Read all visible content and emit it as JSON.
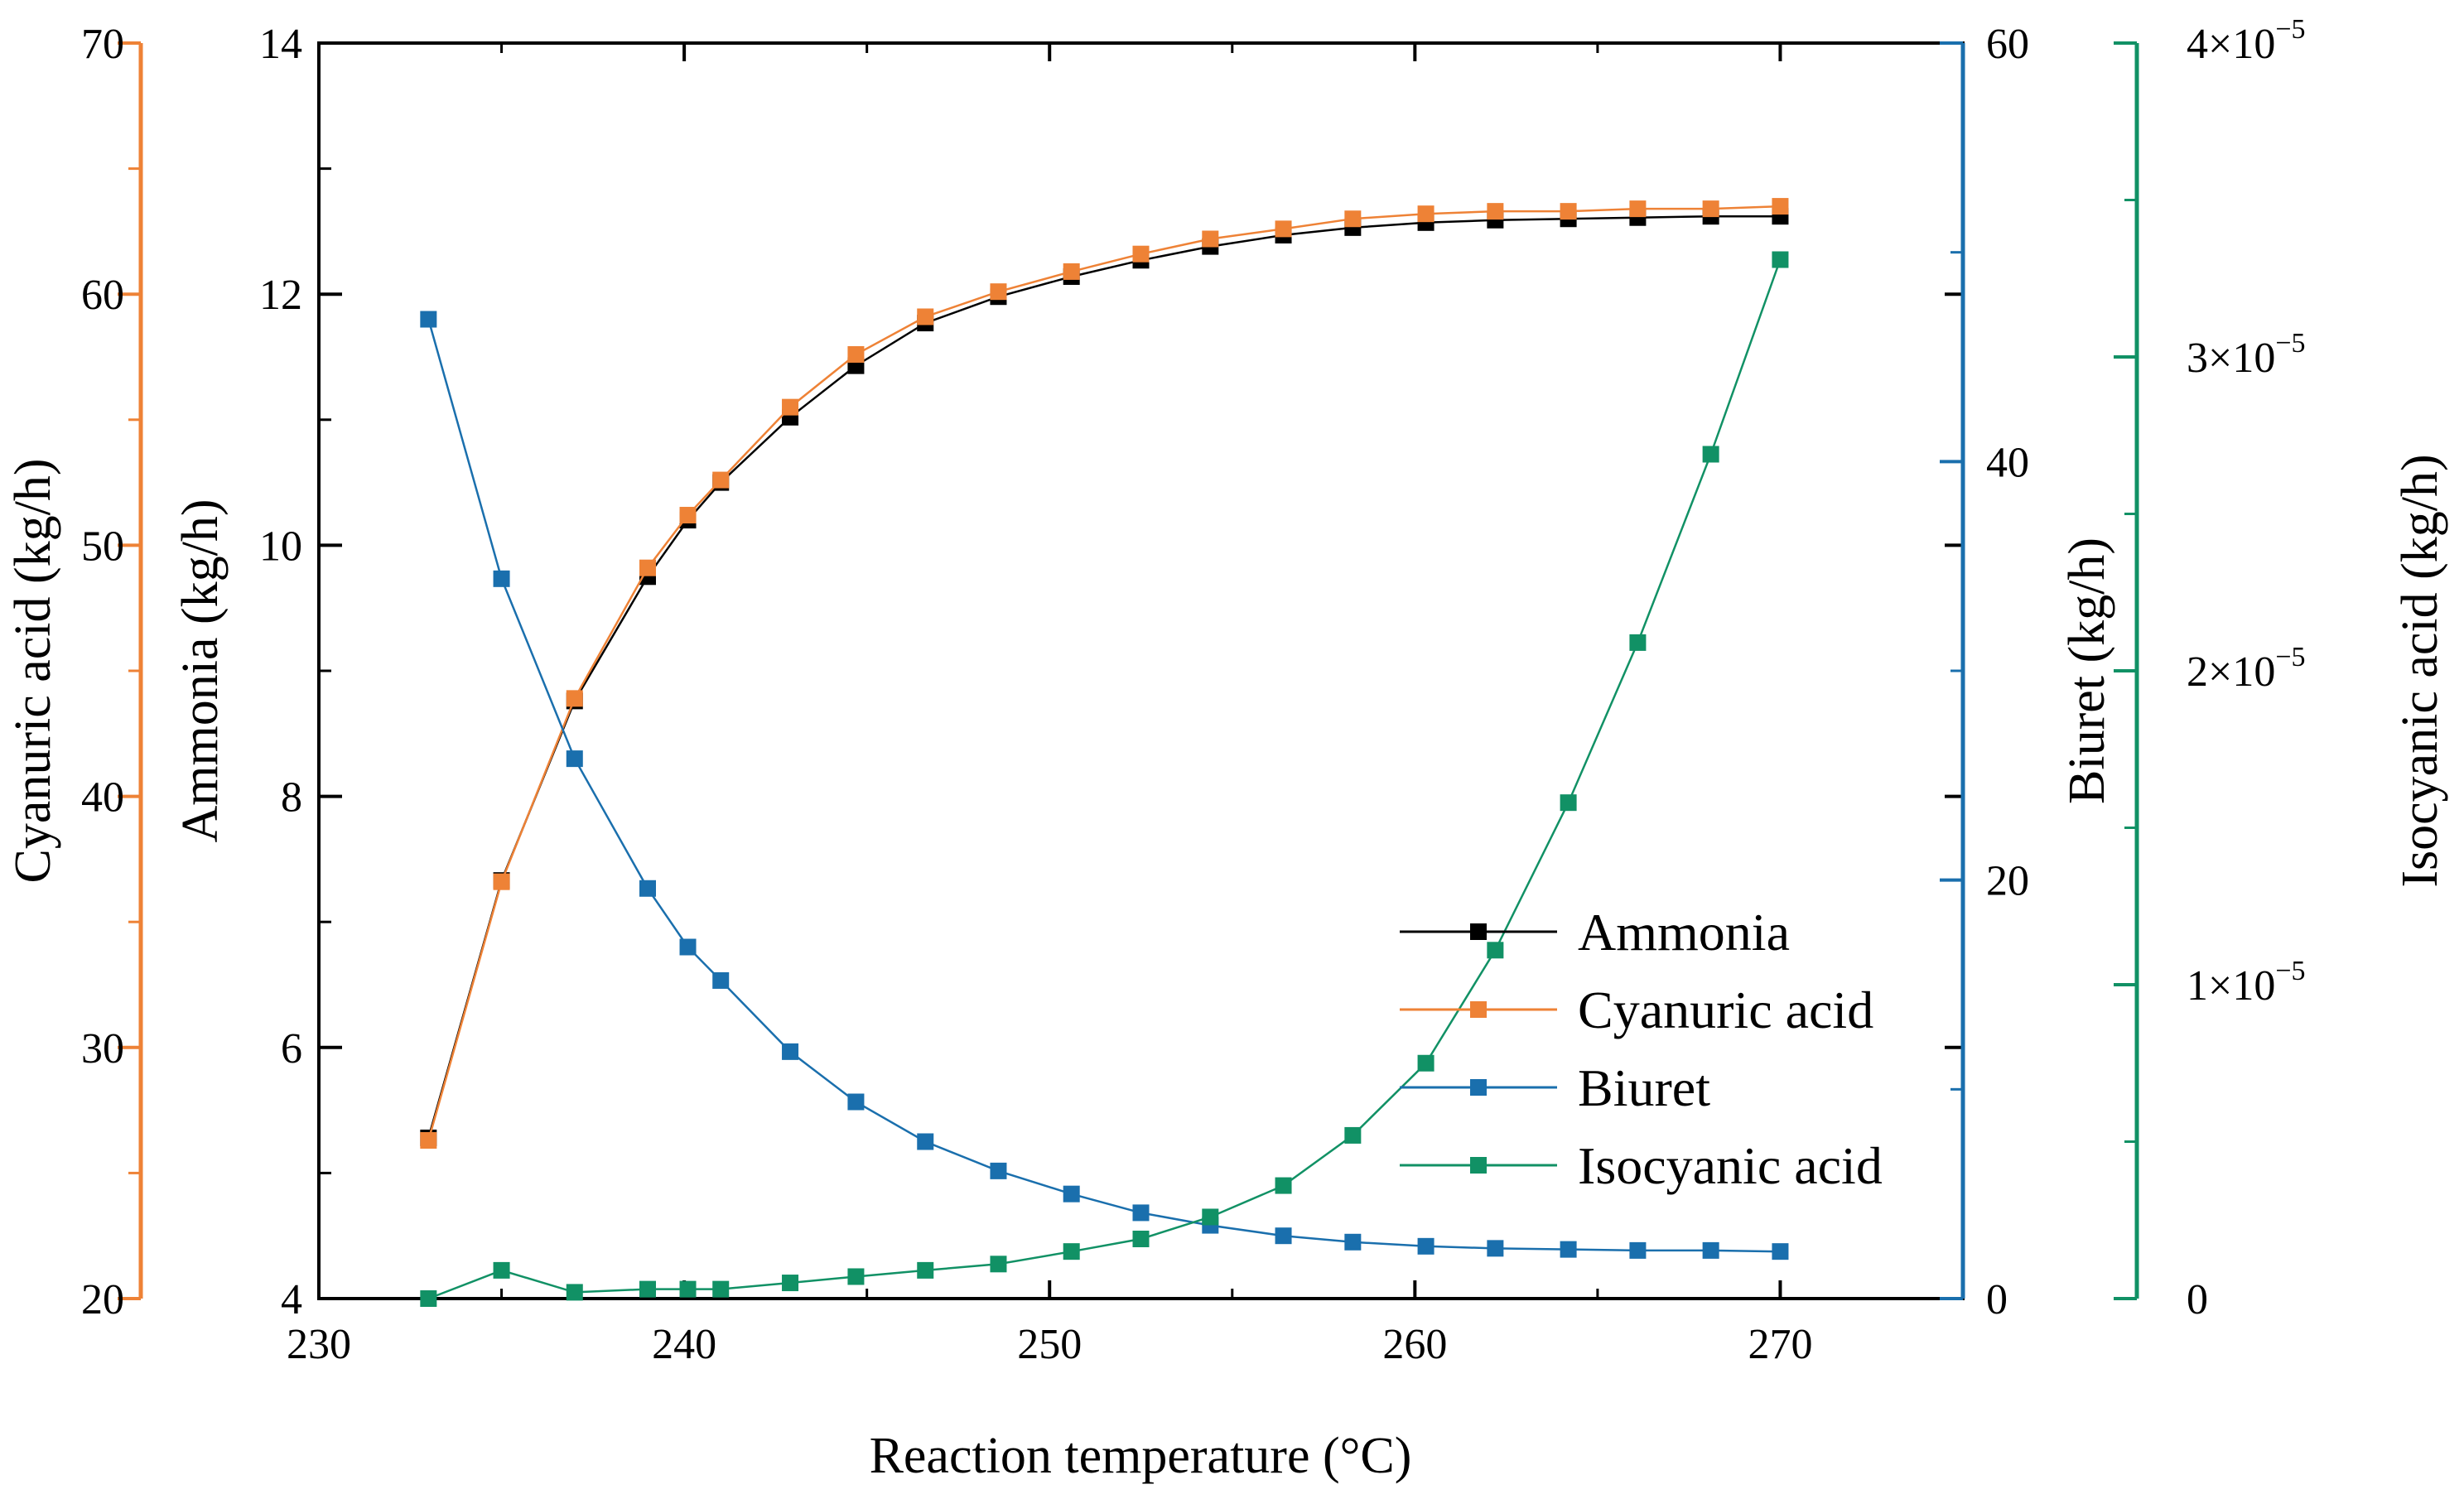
{
  "chart_data": {
    "type": "line",
    "xlabel": "Reaction temperature (°C)",
    "xlim": [
      230,
      275
    ],
    "x_ticks": [
      230,
      240,
      250,
      260,
      270
    ],
    "x_tick_labels": [
      "230",
      "240",
      "250",
      "260",
      "270"
    ],
    "axes": [
      {
        "id": "cyanuric",
        "label": "Cyanuric acid (kg/h)",
        "ylim": [
          20,
          70
        ],
        "ticks": [
          "20",
          "30",
          "40",
          "50",
          "60",
          "70"
        ],
        "color": "#ee8236",
        "side": "left-outer"
      },
      {
        "id": "ammonia",
        "label": "Ammonia (kg/h)",
        "ylim": [
          4,
          14
        ],
        "ticks": [
          "4",
          "6",
          "8",
          "10",
          "12",
          "14"
        ],
        "color": "#000000",
        "side": "left"
      },
      {
        "id": "biuret",
        "label": "Biuret (kg/h)",
        "ylim": [
          0,
          60
        ],
        "ticks": [
          "0",
          "20",
          "40",
          "60"
        ],
        "color": "#1a6fad",
        "side": "right"
      },
      {
        "id": "isocyanic",
        "label": "Isocyanic acid (kg/h)",
        "ylim": [
          0,
          4e-05
        ],
        "ticks": [
          "0",
          "1×10",
          "2×10",
          "3×10",
          "4×10"
        ],
        "tick_exponent": "−5",
        "color": "#119165",
        "side": "right-outer"
      }
    ],
    "x": [
      233,
      235,
      237,
      239,
      240.1,
      241,
      242.9,
      244.7,
      246.6,
      248.6,
      250.6,
      252.5,
      254.4,
      256.4,
      258.3,
      260.3,
      262.2,
      264.2,
      266.1,
      268.1,
      270
    ],
    "series": [
      {
        "name": "Ammonia",
        "axis": "ammonia",
        "color": "#000000",
        "values": [
          5.28,
          7.33,
          8.76,
          9.75,
          10.2,
          10.5,
          11.02,
          11.43,
          11.77,
          11.98,
          12.14,
          12.27,
          12.38,
          12.47,
          12.53,
          12.57,
          12.59,
          12.6,
          12.61,
          12.62,
          12.62
        ]
      },
      {
        "name": "Cyanuric acid",
        "axis": "cyanuric",
        "color": "#ee8236",
        "values": [
          26.3,
          36.6,
          43.9,
          49.1,
          51.2,
          52.6,
          55.5,
          57.6,
          59.1,
          60.1,
          60.9,
          61.6,
          62.2,
          62.6,
          63.0,
          63.2,
          63.3,
          63.3,
          63.4,
          63.4,
          63.5
        ]
      },
      {
        "name": "Biuret",
        "axis": "biuret",
        "color": "#1a6fad",
        "values": [
          46.8,
          34.4,
          25.8,
          19.6,
          16.8,
          15.2,
          11.8,
          9.4,
          7.5,
          6.1,
          5.0,
          4.1,
          3.5,
          3.0,
          2.7,
          2.5,
          2.4,
          2.35,
          2.3,
          2.3,
          2.25
        ]
      },
      {
        "name": "Isocyanic acid",
        "axis": "isocyanic",
        "color": "#119165",
        "values": [
          0,
          9e-07,
          2e-07,
          3e-07,
          3e-07,
          3e-07,
          5e-07,
          7e-07,
          9e-07,
          1.1e-06,
          1.5e-06,
          1.9e-06,
          2.6e-06,
          3.6e-06,
          5.2e-06,
          7.5e-06,
          1.11e-05,
          1.58e-05,
          2.09e-05,
          2.69e-05,
          3.31e-05
        ]
      }
    ],
    "legend": {
      "position": "lower-right",
      "entries": [
        "Ammonia",
        "Cyanuric acid",
        "Biuret",
        "Isocyanic acid"
      ]
    }
  }
}
